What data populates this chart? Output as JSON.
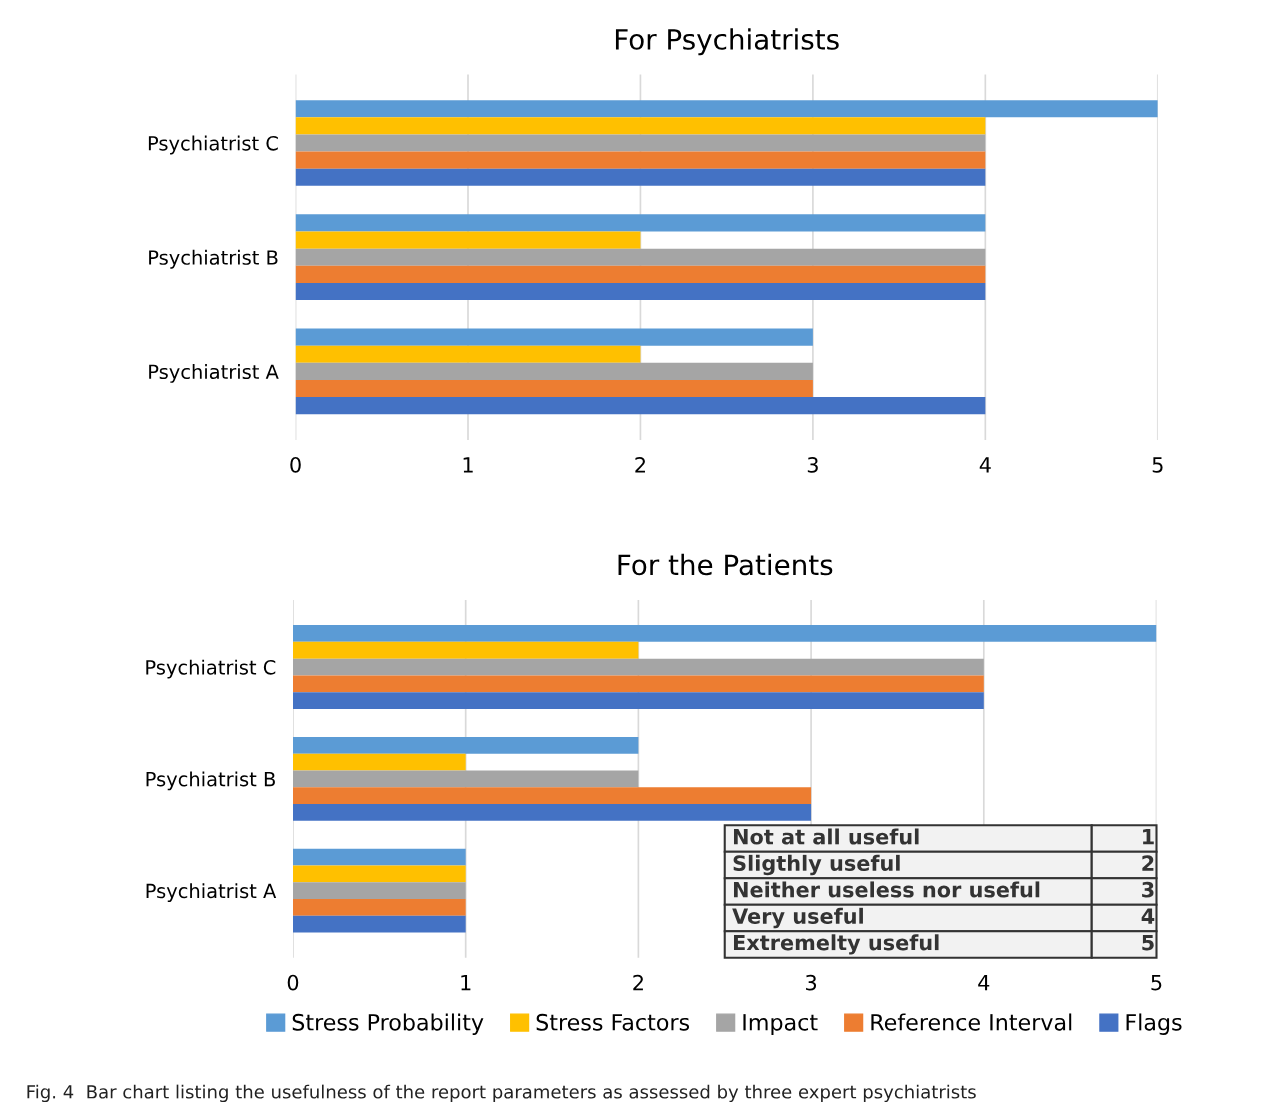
{
  "chart_data": [
    {
      "type": "bar",
      "orientation": "horizontal",
      "title": "For Psychiatrists",
      "categories": [
        "Psychiatrist C",
        "Psychiatrist B",
        "Psychiatrist A"
      ],
      "series": [
        {
          "color": "#5b9bd5",
          "values": [
            5,
            4,
            3
          ]
        },
        {
          "color": "#ffc000",
          "values": [
            4,
            2,
            2
          ]
        },
        {
          "color": "#a5a5a5",
          "values": [
            4,
            4,
            3
          ]
        },
        {
          "color": "#ed7d31",
          "values": [
            4,
            4,
            3
          ]
        },
        {
          "color": "#4472c4",
          "values": [
            4,
            4,
            4
          ]
        }
      ],
      "xlim": [
        0,
        5
      ],
      "xticks": [
        0,
        1,
        2,
        3,
        4,
        5
      ],
      "grid": "x"
    },
    {
      "type": "bar",
      "orientation": "horizontal",
      "title": "For the Patients",
      "categories": [
        "Psychiatrist C",
        "Psychiatrist B",
        "Psychiatrist A"
      ],
      "series": [
        {
          "name": "Stress Probability",
          "color": "#5b9bd5",
          "values": [
            5,
            2,
            1
          ]
        },
        {
          "name": "Stress Factors",
          "color": "#ffc000",
          "values": [
            2,
            1,
            1
          ]
        },
        {
          "name": "Impact",
          "color": "#a5a5a5",
          "values": [
            4,
            2,
            1
          ]
        },
        {
          "name": "Reference Interval",
          "color": "#ed7d31",
          "values": [
            4,
            3,
            1
          ]
        },
        {
          "name": "Flags",
          "color": "#4472c4",
          "values": [
            4,
            3,
            1
          ]
        }
      ],
      "xlim": [
        0,
        5
      ],
      "xticks": [
        0,
        1,
        2,
        3,
        4,
        5
      ],
      "grid": "x",
      "legend": "bottom",
      "annotations": [
        "Not at all useful",
        "1",
        "Sligthly useful",
        "2",
        "Neither useless nor useful",
        "3",
        "Very useful",
        "4",
        "Extremelty useful",
        "5",
        "Fig. 4  Bar chart listing the usefulness of the report parameters as assessed by three expert psychiatrists"
      ]
    }
  ]
}
